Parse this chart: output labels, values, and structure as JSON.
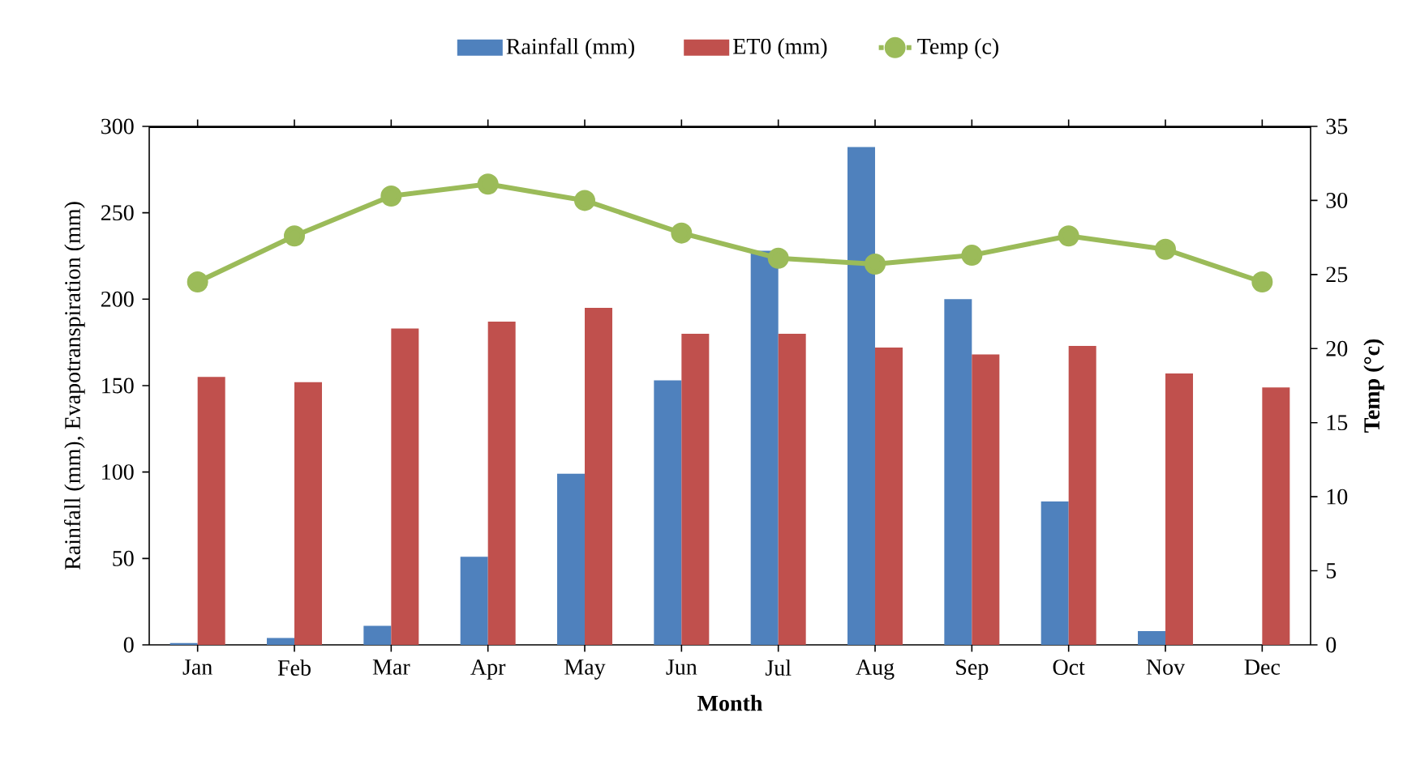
{
  "chart_data": {
    "type": "bar",
    "xlabel": "Month",
    "ylabel": "Rainfall (mm), Evapotranspiration (mm)",
    "y2label": "Temp (°c)",
    "categories": [
      "Jan",
      "Feb",
      "Mar",
      "Apr",
      "May",
      "Jun",
      "Jul",
      "Aug",
      "Sep",
      "Oct",
      "Nov",
      "Dec"
    ],
    "series": [
      {
        "name": "Rainfall (mm)",
        "color": "#4f81bd",
        "values": [
          1,
          4,
          11,
          51,
          99,
          153,
          228,
          288,
          200,
          83,
          8,
          0
        ]
      },
      {
        "name": "ET0 (mm)",
        "color": "#c0504d",
        "values": [
          155,
          152,
          183,
          187,
          195,
          180,
          180,
          172,
          168,
          173,
          157,
          149
        ]
      },
      {
        "name": "Temp (c)",
        "type": "line",
        "axis": "y2",
        "color": "#9bbb59",
        "marker": "circle",
        "values": [
          24.5,
          27.6,
          30.3,
          31.1,
          30.0,
          27.8,
          26.1,
          25.7,
          26.3,
          27.6,
          26.7,
          24.5
        ]
      }
    ],
    "ylim": [
      0,
      300
    ],
    "yticks": [
      0,
      50,
      100,
      150,
      200,
      250,
      300
    ],
    "y2lim": [
      0,
      35
    ],
    "y2ticks": [
      0,
      5,
      10,
      15,
      20,
      25,
      30,
      35
    ],
    "grid": false,
    "legend": "top"
  }
}
